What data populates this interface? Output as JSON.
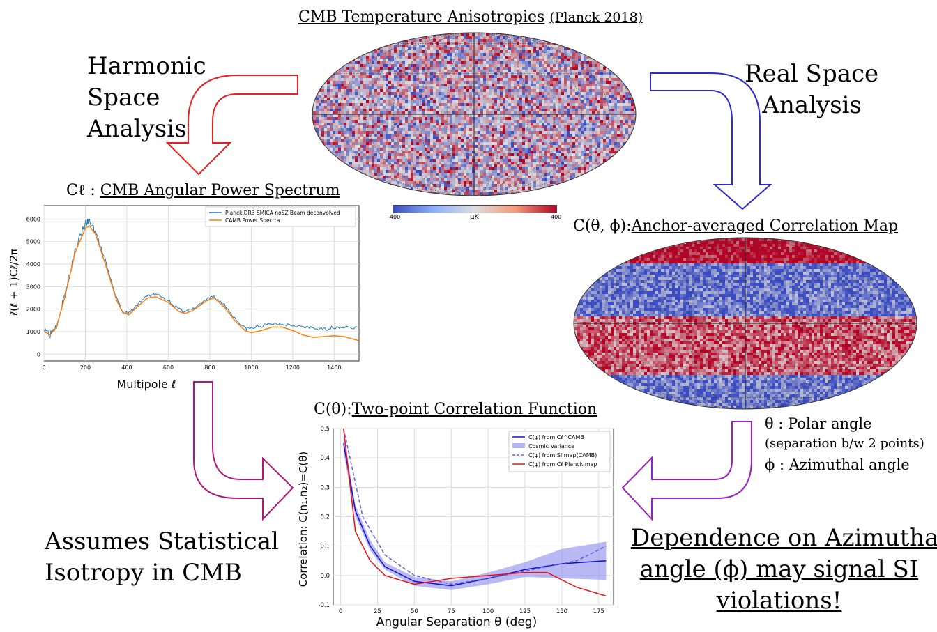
{
  "title": {
    "main": "CMB Temperature Anisotropies",
    "sub": "(Planck 2018)"
  },
  "labels": {
    "harmonic": [
      "Harmonic",
      "Space",
      "Analysis"
    ],
    "real": [
      "Real Space",
      "Analysis"
    ],
    "cl_prefix": "Cℓ : ",
    "cl_title": "CMB Angular Power Spectrum",
    "corrmap_prefix": "C(θ, ϕ):",
    "corrmap_title": "Anchor-averaged Correlation Map",
    "ctheta_prefix": "C(θ):",
    "ctheta_title": "Two-point Correlation Function",
    "theta_def": "θ : Polar angle",
    "theta_note": "(separation b/w 2 points)",
    "phi_def": "ϕ : Azimuthal angle",
    "assumes": [
      "Assumes Statistical",
      "Isotropy in CMB"
    ],
    "dependence": [
      "Dependence on Azimuthal",
      "angle (ϕ) may signal SI",
      "violations!"
    ]
  },
  "colorbar": {
    "min": "-400",
    "max": "400",
    "unit": "μK"
  },
  "colors": {
    "red_arrow": "#e8211f",
    "blue_arrow": "#2b2bd0",
    "magenta_arrow": "#b0177a",
    "purple_arrow": "#9a1fc0"
  },
  "chart_data": [
    {
      "type": "line",
      "title": "Cℓ : CMB Angular Power Spectrum",
      "xlabel": "Multipole ℓ",
      "ylabel": "ℓ(ℓ + 1)Cℓ/2π",
      "xlim": [
        0,
        1520
      ],
      "ylim": [
        -300,
        6600
      ],
      "xticks": [
        0,
        200,
        400,
        600,
        800,
        1000,
        1200,
        1400
      ],
      "yticks": [
        0,
        1000,
        2000,
        3000,
        4000,
        5000,
        6000
      ],
      "legend": "top-right",
      "series": [
        {
          "name": "Planck DR3 SMICA-noSZ Beam deconvolved",
          "color": "#1f77b4",
          "x": [
            2,
            30,
            60,
            100,
            150,
            200,
            220,
            250,
            300,
            350,
            380,
            410,
            450,
            500,
            540,
            600,
            650,
            680,
            720,
            780,
            820,
            870,
            920,
            970,
            1000,
            1050,
            1100,
            1150,
            1200,
            1250,
            1300,
            1350,
            1400,
            1450,
            1520
          ],
          "y": [
            1200,
            900,
            1300,
            2600,
            4600,
            5800,
            5900,
            5400,
            4000,
            2500,
            1900,
            1800,
            2200,
            2600,
            2650,
            2400,
            2000,
            1900,
            2000,
            2400,
            2550,
            2200,
            1600,
            1150,
            1150,
            1250,
            1350,
            1350,
            1300,
            1200,
            1150,
            1100,
            1200,
            1200,
            1150
          ]
        },
        {
          "name": "CAMB Power Spectra",
          "color": "#ff7f0e",
          "x": [
            2,
            30,
            60,
            100,
            150,
            200,
            220,
            250,
            300,
            350,
            380,
            410,
            450,
            500,
            540,
            600,
            650,
            680,
            720,
            780,
            820,
            870,
            920,
            970,
            1000,
            1050,
            1100,
            1150,
            1200,
            1250,
            1300,
            1350,
            1400,
            1450,
            1520
          ],
          "y": [
            1000,
            850,
            1200,
            2500,
            4500,
            5600,
            5700,
            5300,
            3900,
            2400,
            1850,
            1750,
            2100,
            2500,
            2550,
            2300,
            1900,
            1800,
            1950,
            2350,
            2500,
            2100,
            1500,
            1050,
            950,
            1050,
            1200,
            1200,
            1050,
            850,
            750,
            780,
            820,
            780,
            600
          ]
        }
      ]
    },
    {
      "type": "line",
      "title": "C(θ): Two-point Correlation Function",
      "xlabel": "Angular Separation θ (deg)",
      "ylabel": "Correlation:  C(n₁.n₂)=C(θ)",
      "xlim": [
        -5,
        185
      ],
      "ylim": [
        -0.1,
        0.5
      ],
      "xticks": [
        0,
        25,
        50,
        75,
        100,
        125,
        150,
        175
      ],
      "yticks": [
        -0.1,
        0.0,
        0.1,
        0.2,
        0.3,
        0.4,
        0.5
      ],
      "legend": "top-right",
      "band": {
        "name": "Cosmic Variance",
        "color": "#8080ee",
        "x": [
          2,
          10,
          20,
          30,
          50,
          75,
          100,
          125,
          150,
          180
        ],
        "lo": [
          0.42,
          0.2,
          0.085,
          0.02,
          -0.035,
          -0.05,
          -0.03,
          -0.005,
          -0.01,
          -0.015
        ],
        "hi": [
          0.48,
          0.24,
          0.12,
          0.045,
          -0.005,
          -0.02,
          0.01,
          0.045,
          0.09,
          0.115
        ]
      },
      "series": [
        {
          "name": "C(ψ) from Cℓ^CAMB",
          "color": "#1010d0",
          "style": "solid",
          "x": [
            2,
            10,
            20,
            30,
            50,
            75,
            100,
            125,
            150,
            180
          ],
          "y": [
            0.45,
            0.22,
            0.1,
            0.03,
            -0.02,
            -0.035,
            -0.01,
            0.02,
            0.04,
            0.05
          ]
        },
        {
          "name": "C(ψ) from SI map(CAMB)",
          "color": "#6060e0",
          "style": "dashed",
          "x": [
            2,
            15,
            30,
            50,
            75,
            100,
            125,
            160,
            180
          ],
          "y": [
            0.5,
            0.2,
            0.07,
            0.0,
            -0.03,
            -0.01,
            0.015,
            0.05,
            0.1
          ]
        },
        {
          "name": "C(ψ) from Cℓ Planck map",
          "color": "#ee1010",
          "style": "solid",
          "x": [
            2,
            10,
            20,
            30,
            50,
            75,
            100,
            125,
            140,
            160,
            180
          ],
          "y": [
            0.5,
            0.15,
            0.05,
            0.0,
            -0.03,
            -0.01,
            0.0,
            0.01,
            0.01,
            -0.04,
            -0.07
          ]
        }
      ]
    }
  ]
}
